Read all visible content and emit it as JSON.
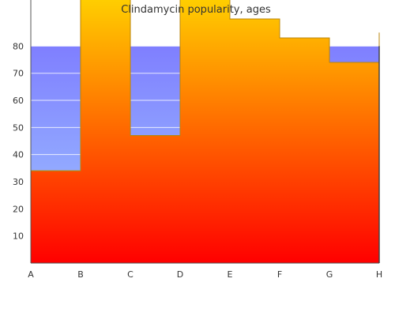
{
  "chart_data": {
    "type": "area",
    "title": "Clindamycin popularity, ages",
    "xlabel": "",
    "ylabel": "",
    "categories": [
      "A",
      "B",
      "C",
      "D",
      "E",
      "F",
      "G",
      "H"
    ],
    "ylim": [
      0,
      97
    ],
    "yticks": [
      10,
      20,
      30,
      40,
      50,
      60,
      70,
      80
    ],
    "grid": true,
    "legend": "none",
    "series": [
      {
        "values": [
          80,
          80,
          80,
          80,
          80,
          80,
          80,
          80
        ],
        "fill_top": "#7f7fff",
        "fill_bottom": "#a0c8ff"
      },
      {
        "values": [
          34,
          100,
          47,
          100,
          90,
          83,
          74,
          85
        ],
        "stroke": "#b8860b",
        "fill_top": "#ffd400",
        "fill_bottom": "#ff0000"
      }
    ]
  }
}
